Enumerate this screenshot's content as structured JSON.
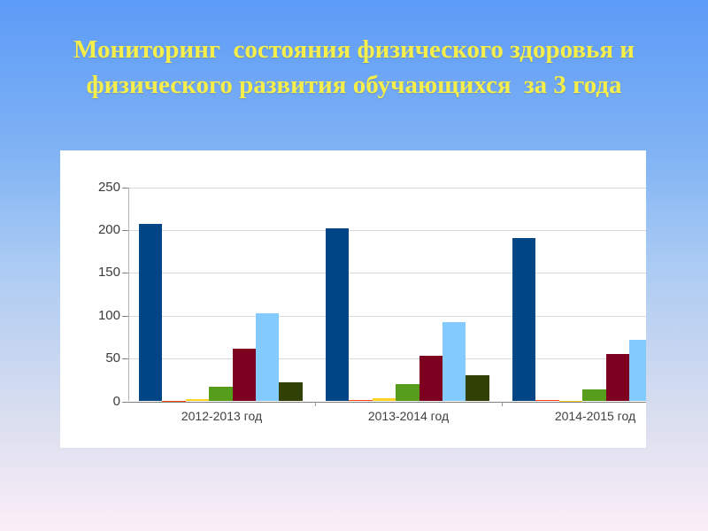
{
  "slide": {
    "title_line1": "Мониторинг  состояния физического здоровья и",
    "title_line2": "физического развития обучающихся  за 3 года",
    "title_color": "#f5ee4b",
    "background_top_color": "#5c9bf7",
    "background_bottom_color": "#fbeef8"
  },
  "chart_data": {
    "type": "bar",
    "title": "",
    "categories": [
      "2012-2013 год",
      "2013-2014 год",
      "2014-2015 год"
    ],
    "series": [
      {
        "name": "series-1-dark-blue",
        "color": "#004586",
        "values": [
          207,
          202,
          191
        ]
      },
      {
        "name": "series-2-orange-red",
        "color": "#ff420e",
        "values": [
          1,
          2,
          2
        ]
      },
      {
        "name": "series-3-yellow",
        "color": "#ffd320",
        "values": [
          3,
          4,
          1
        ]
      },
      {
        "name": "series-4-green",
        "color": "#579d1c",
        "values": [
          17,
          20,
          14
        ]
      },
      {
        "name": "series-5-dark-red",
        "color": "#7e0021",
        "values": [
          62,
          53,
          55
        ]
      },
      {
        "name": "series-6-light-blue",
        "color": "#83caff",
        "values": [
          103,
          93,
          72
        ]
      },
      {
        "name": "series-7-dark-olive",
        "color": "#314004",
        "values": [
          22,
          30,
          null
        ]
      }
    ],
    "y_ticks": [
      0,
      50,
      100,
      150,
      200,
      250
    ],
    "ylim": [
      0,
      250
    ],
    "grid": true,
    "legend": "none",
    "plot_background": "#ffffff",
    "right_edge_clipped": true
  }
}
